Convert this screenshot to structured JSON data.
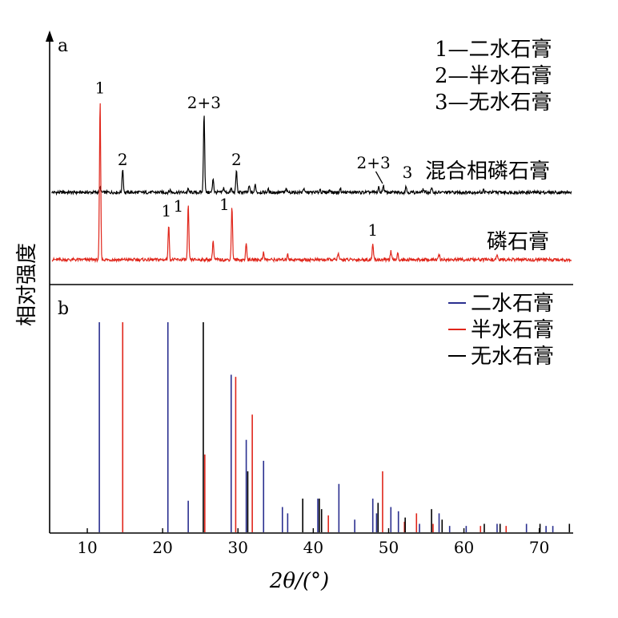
{
  "chart_data": {
    "type": "line",
    "xlabel": "2θ/(°)",
    "ylabel": "相对强度",
    "xlim": [
      5,
      74.5
    ],
    "x_ticks": [
      10,
      20,
      30,
      40,
      50,
      60,
      70
    ],
    "panels": {
      "a": {
        "label": "a",
        "legend": [
          "1—二水石膏",
          "2—半水石膏",
          "3—无水石膏"
        ],
        "series": [
          {
            "name": "混合相磷石膏",
            "color": "#000000",
            "baseline": 0.5,
            "peaks": [
              [
                11.7,
                0.06
              ],
              [
                14.7,
                0.3
              ],
              [
                21.0,
                0.03
              ],
              [
                23.4,
                0.04
              ],
              [
                25.5,
                1.0
              ],
              [
                26.7,
                0.18
              ],
              [
                28.1,
                0.06
              ],
              [
                29.1,
                0.05
              ],
              [
                29.8,
                0.28
              ],
              [
                31.5,
                0.08
              ],
              [
                32.3,
                0.1
              ],
              [
                34.0,
                0.04
              ],
              [
                36.4,
                0.04
              ],
              [
                38.7,
                0.05
              ],
              [
                40.9,
                0.04
              ],
              [
                42.2,
                0.04
              ],
              [
                43.6,
                0.05
              ],
              [
                48.7,
                0.06
              ],
              [
                49.3,
                0.09
              ],
              [
                52.3,
                0.08
              ],
              [
                54.6,
                0.04
              ],
              [
                55.7,
                0.05
              ],
              [
                62.6,
                0.03
              ]
            ],
            "peak_labels": [
              {
                "text": "2+3",
                "x": 25.5,
                "y": 1.05
              },
              {
                "text": "2",
                "x": 14.7,
                "y": 0.34
              },
              {
                "text": "2",
                "x": 29.8,
                "y": 0.34
              },
              {
                "text": "2+3",
                "x": 48.0,
                "y": 0.3
              },
              {
                "text": "3",
                "x": 52.5,
                "y": 0.18
              }
            ],
            "curve_label": "混合相磷石膏"
          },
          {
            "name": "磷石膏",
            "color": "#e0261b",
            "baseline": 0.1,
            "peaks": [
              [
                11.7,
                1.0
              ],
              [
                20.8,
                0.22
              ],
              [
                23.4,
                0.34
              ],
              [
                26.7,
                0.12
              ],
              [
                29.2,
                0.34
              ],
              [
                31.1,
                0.1
              ],
              [
                33.4,
                0.05
              ],
              [
                36.6,
                0.04
              ],
              [
                43.3,
                0.04
              ],
              [
                47.9,
                0.1
              ],
              [
                50.3,
                0.05
              ],
              [
                51.2,
                0.04
              ],
              [
                56.7,
                0.03
              ],
              [
                64.4,
                0.03
              ]
            ],
            "peak_labels": [
              {
                "text": "1",
                "x": 11.7,
                "y": 1.04
              },
              {
                "text": "1",
                "x": 20.5,
                "y": 0.27
              },
              {
                "text": "1",
                "x": 22.1,
                "y": 0.3
              },
              {
                "text": "1",
                "x": 28.2,
                "y": 0.31
              },
              {
                "text": "1",
                "x": 47.9,
                "y": 0.15
              }
            ],
            "curve_label": "磷石膏"
          }
        ]
      },
      "b": {
        "label": "b",
        "legend": [
          {
            "name": "二水石膏",
            "color": "#2a2f8f"
          },
          {
            "name": "半水石膏",
            "color": "#e0261b"
          },
          {
            "name": "无水石膏",
            "color": "#000000"
          }
        ],
        "sticks": {
          "二水石膏": [
            [
              11.6,
              100
            ],
            [
              20.7,
              100
            ],
            [
              23.4,
              15
            ],
            [
              29.1,
              75
            ],
            [
              31.1,
              44
            ],
            [
              33.4,
              34
            ],
            [
              35.9,
              12
            ],
            [
              36.6,
              9
            ],
            [
              40.6,
              16
            ],
            [
              43.4,
              23
            ],
            [
              45.5,
              6
            ],
            [
              47.9,
              16
            ],
            [
              48.4,
              9
            ],
            [
              50.3,
              12
            ],
            [
              51.3,
              10
            ],
            [
              54.1,
              4
            ],
            [
              56.7,
              9
            ],
            [
              58.1,
              3
            ],
            [
              60.3,
              3
            ],
            [
              64.4,
              4
            ],
            [
              68.3,
              4
            ],
            [
              70.9,
              3
            ],
            [
              71.8,
              3
            ]
          ],
          "半水石膏": [
            [
              14.7,
              100
            ],
            [
              25.6,
              37
            ],
            [
              29.7,
              74
            ],
            [
              31.9,
              56
            ],
            [
              42.0,
              8
            ],
            [
              49.2,
              29
            ],
            [
              52.1,
              5
            ],
            [
              53.7,
              9
            ],
            [
              55.9,
              4
            ],
            [
              62.2,
              3
            ],
            [
              65.6,
              3
            ]
          ],
          "无水石膏": [
            [
              25.4,
              100
            ],
            [
              31.3,
              29
            ],
            [
              38.6,
              16
            ],
            [
              40.8,
              16
            ],
            [
              41.1,
              11
            ],
            [
              48.6,
              14
            ],
            [
              52.2,
              7
            ],
            [
              55.7,
              11
            ],
            [
              57.1,
              6
            ],
            [
              62.7,
              4
            ],
            [
              64.8,
              4
            ],
            [
              70.1,
              4
            ],
            [
              74.0,
              4
            ]
          ]
        }
      }
    }
  }
}
